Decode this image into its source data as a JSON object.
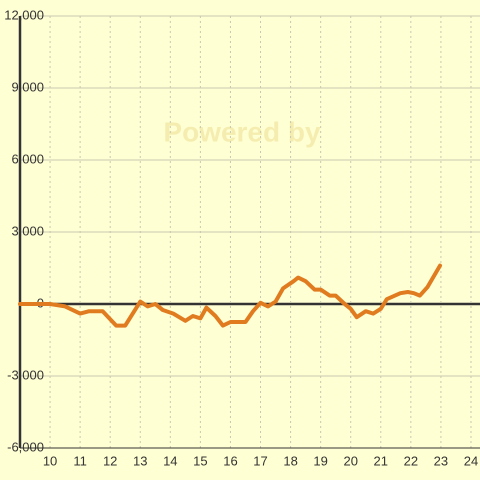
{
  "chart_data": {
    "type": "line",
    "watermark": "Powered by",
    "x": [
      9.0,
      10.0,
      10.5,
      11.0,
      11.3,
      11.75,
      12.2,
      12.5,
      13.0,
      13.25,
      13.5,
      13.75,
      14.1,
      14.5,
      14.75,
      15.0,
      15.2,
      15.5,
      15.75,
      16.0,
      16.5,
      16.75,
      17.0,
      17.25,
      17.5,
      17.75,
      18.1,
      18.25,
      18.5,
      18.8,
      19.0,
      19.3,
      19.5,
      19.8,
      20.0,
      20.2,
      20.5,
      20.75,
      21.0,
      21.2,
      21.65,
      21.9,
      22.1,
      22.3,
      22.55,
      22.97
    ],
    "series": [
      {
        "color": "#e07b20",
        "values": [
          0,
          0,
          -100,
          -400,
          -300,
          -300,
          -900,
          -900,
          100,
          -100,
          0,
          -250,
          -400,
          -700,
          -500,
          -600,
          -150,
          -500,
          -900,
          -750,
          -750,
          -300,
          50,
          -100,
          100,
          650,
          950,
          1100,
          950,
          600,
          600,
          350,
          350,
          0,
          -200,
          -550,
          -300,
          -400,
          -200,
          200,
          450,
          500,
          450,
          350,
          700,
          1600
        ]
      }
    ],
    "xlim": [
      9,
      24.3
    ],
    "xticks": [
      10,
      11,
      12,
      13,
      14,
      15,
      16,
      17,
      18,
      19,
      20,
      21,
      22,
      23,
      24
    ],
    "ylim": [
      -6000,
      12000
    ],
    "yticks": [
      {
        "value": -6000,
        "label": "-6,000"
      },
      {
        "value": -3000,
        "label": "-3,000"
      },
      0,
      {
        "value": 3000,
        "label": "3,000"
      },
      {
        "value": 6000,
        "label": "6,000"
      },
      {
        "value": 9000,
        "label": "9,000"
      },
      {
        "value": 12000,
        "label": "12,000"
      }
    ],
    "grid": true
  }
}
